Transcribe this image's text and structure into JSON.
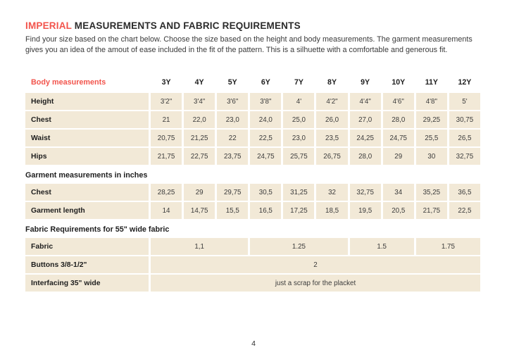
{
  "colors": {
    "accent": "#f2544c",
    "cell_background": "#f2e9d7",
    "text": "#2b2b2b"
  },
  "header": {
    "title_highlight": "IMPERIAL",
    "title_rest": " MEASUREMENTS AND FABRIC REQUIREMENTS",
    "intro_line1": "Find your size based on the chart below. Choose the size based on the height and body measurements. The garment measurements",
    "intro_line2": "gives you an idea of the amout of ease included in the fit of the pattern. This is a silhuette with a comfortable and generous fit."
  },
  "table": {
    "header": {
      "label": "Body measurements",
      "sizes": [
        "3Y",
        "4Y",
        "5Y",
        "6Y",
        "7Y",
        "8Y",
        "9Y",
        "10Y",
        "11Y",
        "12Y"
      ]
    },
    "body_rows": [
      {
        "label": "Height",
        "values": [
          "3'2\"",
          "3'4\"",
          "3'6\"",
          "3'8\"",
          "4'",
          "4'2\"",
          "4'4\"",
          "4'6\"",
          "4'8\"",
          "5'"
        ]
      },
      {
        "label": "Chest",
        "values": [
          "21",
          "22,0",
          "23,0",
          "24,0",
          "25,0",
          "26,0",
          "27,0",
          "28,0",
          "29,25",
          "30,75"
        ]
      },
      {
        "label": "Waist",
        "values": [
          "20,75",
          "21,25",
          "22",
          "22,5",
          "23,0",
          "23,5",
          "24,25",
          "24,75",
          "25,5",
          "26,5"
        ]
      },
      {
        "label": "Hips",
        "values": [
          "21,75",
          "22,75",
          "23,75",
          "24,75",
          "25,75",
          "26,75",
          "28,0",
          "29",
          "30",
          "32,75"
        ]
      }
    ],
    "garment_section_title": "Garment measurements in inches",
    "garment_rows": [
      {
        "label": "Chest",
        "values": [
          "28,25",
          "29",
          "29,75",
          "30,5",
          "31,25",
          "32",
          "32,75",
          "34",
          "35,25",
          "36,5"
        ]
      },
      {
        "label": "Garment length",
        "values": [
          "14",
          "14,75",
          "15,5",
          "16,5",
          "17,25",
          "18,5",
          "19,5",
          "20,5",
          "21,75",
          "22,5"
        ]
      }
    ],
    "fabric_section_title": "Fabric Requirements for  55\" wide fabric",
    "fabric_rows": [
      {
        "label": "Fabric",
        "cells": [
          {
            "value": "1,1",
            "span": 3
          },
          {
            "value": "1.25",
            "span": 3
          },
          {
            "value": "1.5",
            "span": 2
          },
          {
            "value": "1.75",
            "span": 2
          }
        ]
      },
      {
        "label": "Buttons 3/8-1/2\"",
        "cells": [
          {
            "value": "2",
            "span": 10
          }
        ]
      },
      {
        "label": "Interfacing  35\" wide",
        "cells": [
          {
            "value": "just a scrap for the placket",
            "span": 10
          }
        ]
      }
    ]
  },
  "footer": {
    "page_number": "4"
  }
}
